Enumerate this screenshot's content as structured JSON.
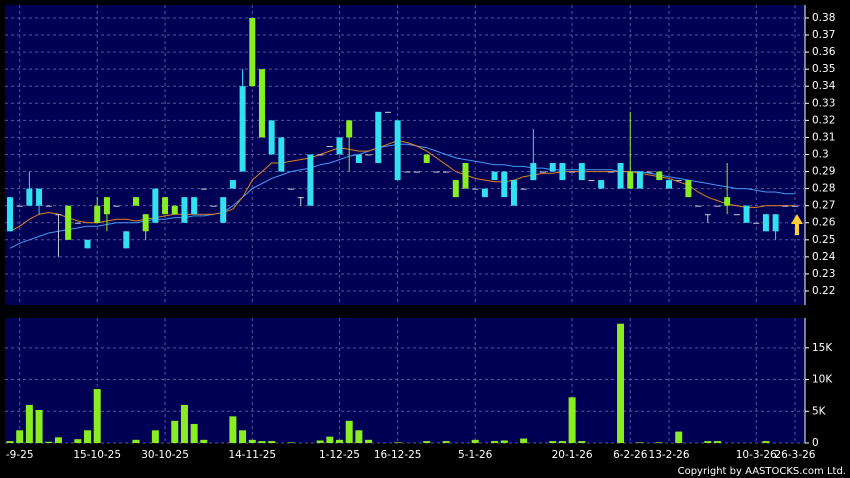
{
  "chart_data": {
    "type": "candlestick",
    "categories": [
      null,
      "-9-25",
      null,
      null,
      null,
      null,
      null,
      null,
      null,
      "15-10-25",
      null,
      null,
      null,
      null,
      null,
      null,
      "30-10-25",
      null,
      null,
      null,
      null,
      null,
      null,
      null,
      null,
      "14-11-25",
      null,
      null,
      null,
      null,
      null,
      null,
      null,
      null,
      "1-12-25",
      null,
      null,
      null,
      null,
      null,
      "16-12-25",
      null,
      null,
      null,
      null,
      null,
      null,
      null,
      "5-1-26",
      null,
      null,
      null,
      null,
      null,
      null,
      null,
      null,
      null,
      "20-1-26",
      null,
      null,
      null,
      null,
      null,
      "6-2-26",
      null,
      null,
      null,
      "13-2-26",
      null,
      null,
      null,
      null,
      null,
      null,
      null,
      null,
      "10-3-26",
      null,
      null,
      null,
      "26-3-26"
    ],
    "candles": [
      {
        "o": 0.275,
        "h": 0.275,
        "l": 0.255,
        "c": 0.255
      },
      {
        "o": 0.27,
        "h": 0.27,
        "l": 0.27,
        "c": 0.27
      },
      {
        "o": 0.28,
        "h": 0.29,
        "l": 0.27,
        "c": 0.27
      },
      {
        "o": 0.28,
        "h": 0.28,
        "l": 0.265,
        "c": 0.27
      },
      {
        "o": 0.27,
        "h": 0.27,
        "l": 0.27,
        "c": 0.27
      },
      {
        "o": 0.265,
        "h": 0.265,
        "l": 0.24,
        "c": 0.265
      },
      {
        "o": 0.25,
        "h": 0.27,
        "l": 0.25,
        "c": 0.27
      },
      {
        "o": 0.26,
        "h": 0.26,
        "l": 0.26,
        "c": 0.26
      },
      {
        "o": 0.25,
        "h": 0.25,
        "l": 0.245,
        "c": 0.245
      },
      {
        "o": 0.26,
        "h": 0.275,
        "l": 0.26,
        "c": 0.27
      },
      {
        "o": 0.265,
        "h": 0.275,
        "l": 0.255,
        "c": 0.275
      },
      {
        "o": 0.27,
        "h": 0.27,
        "l": 0.27,
        "c": 0.27
      },
      {
        "o": 0.255,
        "h": 0.255,
        "l": 0.245,
        "c": 0.245
      },
      {
        "o": 0.27,
        "h": 0.275,
        "l": 0.27,
        "c": 0.275
      },
      {
        "o": 0.255,
        "h": 0.265,
        "l": 0.25,
        "c": 0.265
      },
      {
        "o": 0.28,
        "h": 0.28,
        "l": 0.26,
        "c": 0.26
      },
      {
        "o": 0.265,
        "h": 0.275,
        "l": 0.265,
        "c": 0.275
      },
      {
        "o": 0.265,
        "h": 0.27,
        "l": 0.265,
        "c": 0.27
      },
      {
        "o": 0.275,
        "h": 0.275,
        "l": 0.26,
        "c": 0.26
      },
      {
        "o": 0.275,
        "h": 0.275,
        "l": 0.265,
        "c": 0.265
      },
      {
        "o": 0.28,
        "h": 0.28,
        "l": 0.28,
        "c": 0.28
      },
      {
        "o": 0.27,
        "h": 0.27,
        "l": 0.27,
        "c": 0.27
      },
      {
        "o": 0.275,
        "h": 0.275,
        "l": 0.26,
        "c": 0.26
      },
      {
        "o": 0.285,
        "h": 0.285,
        "l": 0.28,
        "c": 0.28
      },
      {
        "o": 0.34,
        "h": 0.35,
        "l": 0.29,
        "c": 0.29
      },
      {
        "o": 0.34,
        "h": 0.38,
        "l": 0.34,
        "c": 0.38
      },
      {
        "o": 0.31,
        "h": 0.35,
        "l": 0.31,
        "c": 0.35
      },
      {
        "o": 0.32,
        "h": 0.32,
        "l": 0.3,
        "c": 0.3
      },
      {
        "o": 0.31,
        "h": 0.31,
        "l": 0.29,
        "c": 0.29
      },
      {
        "o": 0.28,
        "h": 0.28,
        "l": 0.28,
        "c": 0.28
      },
      {
        "o": 0.275,
        "h": 0.275,
        "l": 0.27,
        "c": 0.275
      },
      {
        "o": 0.3,
        "h": 0.3,
        "l": 0.27,
        "c": 0.27
      },
      {
        "o": 0.3,
        "h": 0.3,
        "l": 0.3,
        "c": 0.3
      },
      {
        "o": 0.305,
        "h": 0.305,
        "l": 0.305,
        "c": 0.305
      },
      {
        "o": 0.31,
        "h": 0.31,
        "l": 0.3,
        "c": 0.3
      },
      {
        "o": 0.31,
        "h": 0.32,
        "l": 0.29,
        "c": 0.32
      },
      {
        "o": 0.3,
        "h": 0.3,
        "l": 0.295,
        "c": 0.295
      },
      {
        "o": 0.3,
        "h": 0.3,
        "l": 0.3,
        "c": 0.3
      },
      {
        "o": 0.325,
        "h": 0.325,
        "l": 0.295,
        "c": 0.295
      },
      {
        "o": 0.325,
        "h": 0.325,
        "l": 0.325,
        "c": 0.325
      },
      {
        "o": 0.32,
        "h": 0.32,
        "l": 0.285,
        "c": 0.285
      },
      {
        "o": 0.29,
        "h": 0.29,
        "l": 0.29,
        "c": 0.29
      },
      {
        "o": 0.29,
        "h": 0.29,
        "l": 0.29,
        "c": 0.29
      },
      {
        "o": 0.295,
        "h": 0.3,
        "l": 0.295,
        "c": 0.3
      },
      {
        "o": 0.29,
        "h": 0.29,
        "l": 0.29,
        "c": 0.29
      },
      {
        "o": 0.29,
        "h": 0.29,
        "l": 0.29,
        "c": 0.29
      },
      {
        "o": 0.275,
        "h": 0.285,
        "l": 0.275,
        "c": 0.285
      },
      {
        "o": 0.28,
        "h": 0.295,
        "l": 0.28,
        "c": 0.295
      },
      {
        "o": 0.28,
        "h": 0.28,
        "l": 0.28,
        "c": 0.28
      },
      {
        "o": 0.28,
        "h": 0.28,
        "l": 0.275,
        "c": 0.275
      },
      {
        "o": 0.29,
        "h": 0.29,
        "l": 0.285,
        "c": 0.285
      },
      {
        "o": 0.29,
        "h": 0.29,
        "l": 0.275,
        "c": 0.275
      },
      {
        "o": 0.285,
        "h": 0.285,
        "l": 0.27,
        "c": 0.27
      },
      {
        "o": 0.28,
        "h": 0.28,
        "l": 0.28,
        "c": 0.28
      },
      {
        "o": 0.295,
        "h": 0.315,
        "l": 0.285,
        "c": 0.285
      },
      {
        "o": 0.29,
        "h": 0.29,
        "l": 0.29,
        "c": 0.29
      },
      {
        "o": 0.295,
        "h": 0.295,
        "l": 0.29,
        "c": 0.29
      },
      {
        "o": 0.295,
        "h": 0.295,
        "l": 0.285,
        "c": 0.285
      },
      {
        "o": 0.29,
        "h": 0.29,
        "l": 0.29,
        "c": 0.29
      },
      {
        "o": 0.295,
        "h": 0.295,
        "l": 0.285,
        "c": 0.285
      },
      {
        "o": 0.285,
        "h": 0.285,
        "l": 0.285,
        "c": 0.285
      },
      {
        "o": 0.285,
        "h": 0.285,
        "l": 0.28,
        "c": 0.28
      },
      {
        "o": 0.29,
        "h": 0.29,
        "l": 0.29,
        "c": 0.29
      },
      {
        "o": 0.295,
        "h": 0.295,
        "l": 0.28,
        "c": 0.28
      },
      {
        "o": 0.28,
        "h": 0.325,
        "l": 0.28,
        "c": 0.29
      },
      {
        "o": 0.29,
        "h": 0.29,
        "l": 0.28,
        "c": 0.28
      },
      {
        "o": 0.29,
        "h": 0.29,
        "l": 0.29,
        "c": 0.29
      },
      {
        "o": 0.285,
        "h": 0.29,
        "l": 0.285,
        "c": 0.29
      },
      {
        "o": 0.285,
        "h": 0.285,
        "l": 0.28,
        "c": 0.28
      },
      {
        "o": 0.285,
        "h": 0.285,
        "l": 0.285,
        "c": 0.285
      },
      {
        "o": 0.275,
        "h": 0.285,
        "l": 0.275,
        "c": 0.285
      },
      {
        "o": 0.27,
        "h": 0.27,
        "l": 0.27,
        "c": 0.27
      },
      {
        "o": 0.265,
        "h": 0.265,
        "l": 0.26,
        "c": 0.265
      },
      {
        "o": 0.27,
        "h": 0.27,
        "l": 0.27,
        "c": 0.27
      },
      {
        "o": 0.27,
        "h": 0.295,
        "l": 0.265,
        "c": 0.275
      },
      {
        "o": 0.265,
        "h": 0.265,
        "l": 0.265,
        "c": 0.265
      },
      {
        "o": 0.27,
        "h": 0.27,
        "l": 0.26,
        "c": 0.26
      },
      {
        "o": 0.26,
        "h": 0.26,
        "l": 0.26,
        "c": 0.26
      },
      {
        "o": 0.265,
        "h": 0.265,
        "l": 0.255,
        "c": 0.255
      },
      {
        "o": 0.265,
        "h": 0.265,
        "l": 0.25,
        "c": 0.255
      },
      {
        "o": 0.27,
        "h": 0.27,
        "l": 0.27,
        "c": 0.27
      },
      {
        "o": 0.27,
        "h": 0.27,
        "l": 0.27,
        "c": 0.27
      }
    ],
    "up_color": "#88ee22",
    "down_color": "#33e0f0",
    "flat_color": "#cccccc",
    "ma": [
      {
        "color": "#4499ee",
        "values": [
          0.245,
          0.248,
          0.25,
          0.252,
          0.254,
          0.255,
          0.256,
          0.257,
          0.258,
          0.258,
          0.259,
          0.26,
          0.26,
          0.26,
          0.261,
          0.262,
          0.262,
          0.263,
          0.263,
          0.264,
          0.264,
          0.265,
          0.266,
          0.27,
          0.275,
          0.28,
          0.283,
          0.286,
          0.288,
          0.29,
          0.291,
          0.292,
          0.294,
          0.295,
          0.297,
          0.299,
          0.3,
          0.302,
          0.304,
          0.305,
          0.306,
          0.306,
          0.305,
          0.304,
          0.302,
          0.3,
          0.298,
          0.297,
          0.296,
          0.295,
          0.294,
          0.294,
          0.293,
          0.293,
          0.292,
          0.292,
          0.291,
          0.291,
          0.291,
          0.291,
          0.291,
          0.291,
          0.291,
          0.29,
          0.29,
          0.29,
          0.289,
          0.288,
          0.287,
          0.286,
          0.285,
          0.284,
          0.283,
          0.282,
          0.281,
          0.28,
          0.28,
          0.279,
          0.278,
          0.278,
          0.277,
          0.277
        ]
      },
      {
        "color": "#e08020",
        "values": [
          0.255,
          0.258,
          0.262,
          0.265,
          0.266,
          0.265,
          0.263,
          0.261,
          0.26,
          0.26,
          0.261,
          0.262,
          0.262,
          0.261,
          0.262,
          0.263,
          0.264,
          0.265,
          0.265,
          0.265,
          0.265,
          0.265,
          0.266,
          0.268,
          0.275,
          0.285,
          0.29,
          0.295,
          0.295,
          0.296,
          0.297,
          0.298,
          0.3,
          0.302,
          0.304,
          0.303,
          0.302,
          0.302,
          0.304,
          0.306,
          0.308,
          0.307,
          0.305,
          0.302,
          0.298,
          0.294,
          0.29,
          0.288,
          0.286,
          0.285,
          0.284,
          0.284,
          0.285,
          0.287,
          0.288,
          0.289,
          0.289,
          0.29,
          0.29,
          0.29,
          0.29,
          0.29,
          0.29,
          0.29,
          0.29,
          0.289,
          0.288,
          0.287,
          0.286,
          0.284,
          0.282,
          0.278,
          0.275,
          0.273,
          0.271,
          0.27,
          0.269,
          0.269,
          0.27,
          0.27,
          0.27,
          0.27
        ]
      }
    ],
    "ylim": [
      0.2118,
      0.3876
    ],
    "yticks": [
      0.22,
      0.23,
      0.24,
      0.25,
      0.26,
      0.27,
      0.28,
      0.29,
      0.3,
      0.31,
      0.32,
      0.33,
      0.34,
      0.35,
      0.36,
      0.37,
      0.38
    ],
    "volume": [
      300,
      2000,
      6000,
      5200,
      200,
      900,
      0,
      600,
      2000,
      8500,
      0,
      0,
      0,
      500,
      0,
      2000,
      0,
      3500,
      6000,
      3000,
      500,
      0,
      0,
      4200,
      2000,
      500,
      300,
      300,
      0,
      100,
      0,
      0,
      400,
      1000,
      500,
      3500,
      2000,
      500,
      0,
      0,
      100,
      0,
      0,
      300,
      0,
      300,
      0,
      0,
      500,
      0,
      300,
      400,
      0,
      700,
      0,
      0,
      300,
      300,
      7200,
      300,
      0,
      0,
      0,
      18800,
      0,
      100,
      0,
      100,
      0,
      1800,
      0,
      0,
      300,
      300,
      0,
      0,
      0,
      0,
      300,
      0,
      0,
      0
    ],
    "volume_color": "#88ee22",
    "vlim": [
      0,
      19700
    ],
    "vticks": [
      0,
      {
        "value": 5000,
        "label": "5K"
      },
      {
        "value": 10000,
        "label": "10K"
      },
      {
        "value": 15000,
        "label": "15K"
      }
    ],
    "grid": true,
    "copyright": "Copyright by AASTOCKS.com Ltd."
  }
}
